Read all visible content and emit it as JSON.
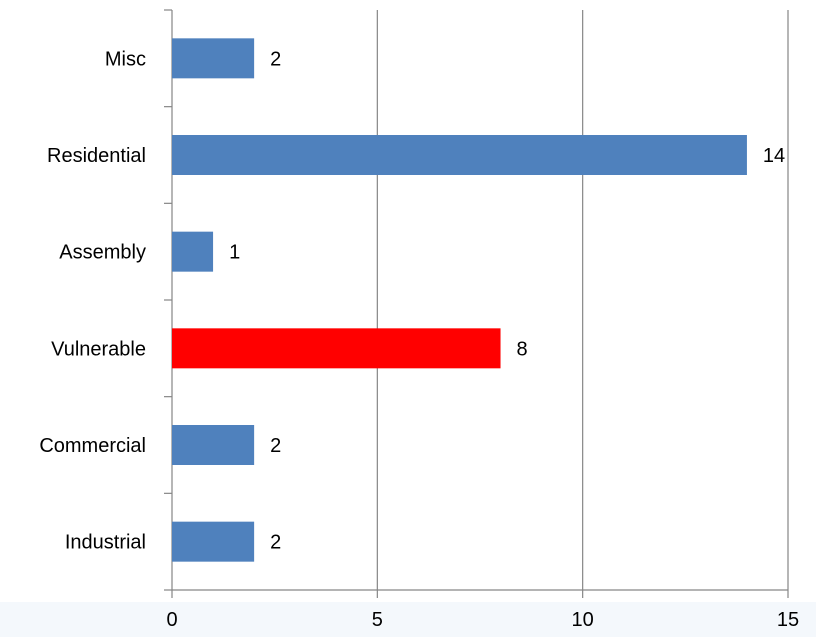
{
  "chart_data": {
    "type": "bar",
    "orientation": "horizontal",
    "categories": [
      "Misc",
      "Residential",
      "Assembly",
      "Vulnerable",
      "Commercial",
      "Industrial"
    ],
    "values": [
      2,
      14,
      1,
      8,
      2,
      2
    ],
    "bar_colors": [
      "#4f81bd",
      "#4f81bd",
      "#4f81bd",
      "#ff0000",
      "#4f81bd",
      "#4f81bd"
    ],
    "data_labels": [
      "2",
      "14",
      "1",
      "8",
      "2",
      "2"
    ],
    "x_ticks": [
      0,
      5,
      10,
      15
    ],
    "x_tick_labels": [
      "0",
      "5",
      "10",
      "15"
    ],
    "xlim": [
      0,
      15
    ],
    "title": "",
    "xlabel": "",
    "ylabel": "",
    "grid": "vertical",
    "legend": "none"
  },
  "colors": {
    "bar": "#4f81bd",
    "highlight": "#ff0000",
    "axis": "#868686",
    "grid": "#868686",
    "bottom_band": "#f4f8fc"
  }
}
